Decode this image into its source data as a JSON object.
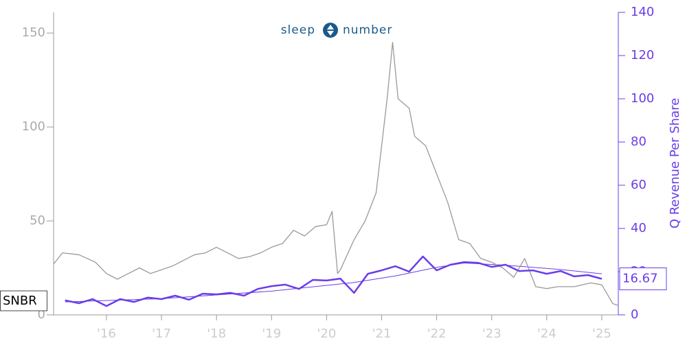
{
  "chart_data": {
    "type": "line",
    "logo": [
      "sleep",
      "number"
    ],
    "y2label": "Q Revenue Per Share",
    "xlim": [
      2015.04,
      2025.3
    ],
    "xticks": [
      {
        "value": 2016,
        "label": "'16"
      },
      {
        "value": 2017,
        "label": "'17"
      },
      {
        "value": 2018,
        "label": "'18"
      },
      {
        "value": 2019,
        "label": "'19"
      },
      {
        "value": 2020,
        "label": "'20"
      },
      {
        "value": 2021,
        "label": "'21"
      },
      {
        "value": 2022,
        "label": "'22"
      },
      {
        "value": 2023,
        "label": "'23"
      },
      {
        "value": 2024,
        "label": "'24"
      },
      {
        "value": 2025,
        "label": "'25"
      }
    ],
    "ylim": [
      0,
      161
    ],
    "yticks": [
      0,
      50,
      100,
      150
    ],
    "y2lim": [
      0,
      140
    ],
    "y2ticks": [
      0,
      20,
      40,
      60,
      80,
      100,
      120,
      140
    ],
    "series": [
      {
        "name": "SNBR",
        "color": "#999999",
        "axis": "y",
        "x": [
          2015.04,
          2015.2,
          2015.5,
          2015.8,
          2016.0,
          2016.2,
          2016.4,
          2016.6,
          2016.8,
          2017.0,
          2017.2,
          2017.4,
          2017.6,
          2017.8,
          2018.0,
          2018.2,
          2018.4,
          2018.6,
          2018.8,
          2019.0,
          2019.2,
          2019.4,
          2019.6,
          2019.8,
          2020.0,
          2020.1,
          2020.2,
          2020.25,
          2020.5,
          2020.7,
          2020.9,
          2021.0,
          2021.1,
          2021.2,
          2021.3,
          2021.5,
          2021.6,
          2021.8,
          2022.0,
          2022.2,
          2022.4,
          2022.6,
          2022.8,
          2023.0,
          2023.2,
          2023.4,
          2023.6,
          2023.8,
          2024.0,
          2024.2,
          2024.5,
          2024.8,
          2025.0,
          2025.2,
          2025.3
        ],
        "values": [
          27,
          33,
          32,
          28,
          22,
          19,
          22,
          25,
          22,
          24,
          26,
          29,
          32,
          33,
          36,
          33,
          30,
          31,
          33,
          36,
          38,
          45,
          42,
          47,
          48,
          55,
          22,
          24,
          40,
          50,
          65,
          90,
          115,
          145,
          115,
          110,
          95,
          90,
          75,
          60,
          40,
          38,
          30,
          28,
          25,
          20,
          30,
          15,
          14,
          15,
          15,
          17,
          16,
          6,
          5
        ]
      },
      {
        "color": "#6a3de8",
        "axis": "y2",
        "x": [
          2015.25,
          2015.5,
          2015.75,
          2016.0,
          2016.25,
          2016.5,
          2016.75,
          2017.0,
          2017.25,
          2017.5,
          2017.75,
          2018.0,
          2018.25,
          2018.5,
          2018.75,
          2019.0,
          2019.25,
          2019.5,
          2019.75,
          2020.0,
          2020.25,
          2020.5,
          2020.75,
          2021.0,
          2021.25,
          2021.5,
          2021.75,
          2022.0,
          2022.25,
          2022.5,
          2022.75,
          2023.0,
          2023.25,
          2023.5,
          2023.75,
          2024.0,
          2024.25,
          2024.5,
          2024.75,
          2025.0
        ],
        "values": [
          6.7,
          5.4,
          7.3,
          4.1,
          7.3,
          6,
          8,
          7.3,
          8.9,
          7,
          9.8,
          9.5,
          10.2,
          8.9,
          12,
          13.3,
          14,
          12,
          16.2,
          15.9,
          16.8,
          10.2,
          19,
          20.6,
          22.5,
          20,
          27,
          20.6,
          23.2,
          24.4,
          24.1,
          22.2,
          23.2,
          20.3,
          20.6,
          19,
          20.3,
          17.8,
          18.4,
          16.67
        ]
      }
    ],
    "trend": {
      "color": "#6a3de8",
      "axis": "y2",
      "x": [
        2015.25,
        2017.0,
        2019.0,
        2020.5,
        2021.25,
        2022.0,
        2022.5,
        2023.25,
        2024.25,
        2025.0
      ],
      "values": [
        6,
        7.5,
        11,
        15,
        18,
        22,
        24,
        23,
        21,
        19
      ]
    }
  }
}
